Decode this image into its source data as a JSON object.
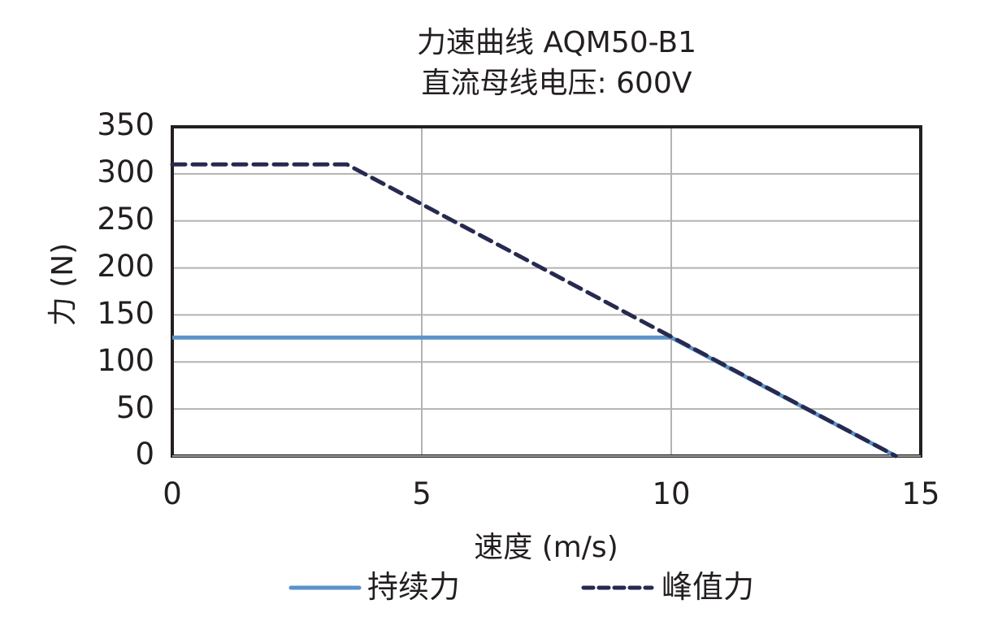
{
  "chart_data": {
    "type": "line",
    "title": "力速曲线 AQM50-B1",
    "subtitle": "直流母线电压: 600V",
    "xlabel": "速度 (m/s)",
    "ylabel": "力 (N)",
    "xlim": [
      0,
      15
    ],
    "ylim": [
      0,
      350
    ],
    "xticks": [
      0,
      5,
      10,
      15
    ],
    "yticks": [
      0,
      50,
      100,
      150,
      200,
      250,
      300,
      350
    ],
    "grid": true,
    "legend_position": "bottom",
    "series": [
      {
        "name": "持续力",
        "style": "solid",
        "color": "#5b93c8",
        "x": [
          0,
          10,
          14.5
        ],
        "y": [
          126,
          126,
          0
        ]
      },
      {
        "name": "峰值力",
        "style": "dashed",
        "color": "#272a4f",
        "x": [
          0,
          3.5,
          14.5
        ],
        "y": [
          310,
          310,
          0
        ]
      }
    ]
  },
  "labels": {
    "title": "力速曲线 AQM50-B1",
    "subtitle": "直流母线电压: 600V",
    "xlabel": "速度 (m/s)",
    "ylabel": "力 (N)",
    "yticks": [
      "350",
      "300",
      "250",
      "200",
      "150",
      "100",
      "50",
      "0"
    ],
    "xticks": [
      "0",
      "5",
      "10",
      "15"
    ],
    "legend": [
      "持续力",
      "峰值力"
    ]
  }
}
